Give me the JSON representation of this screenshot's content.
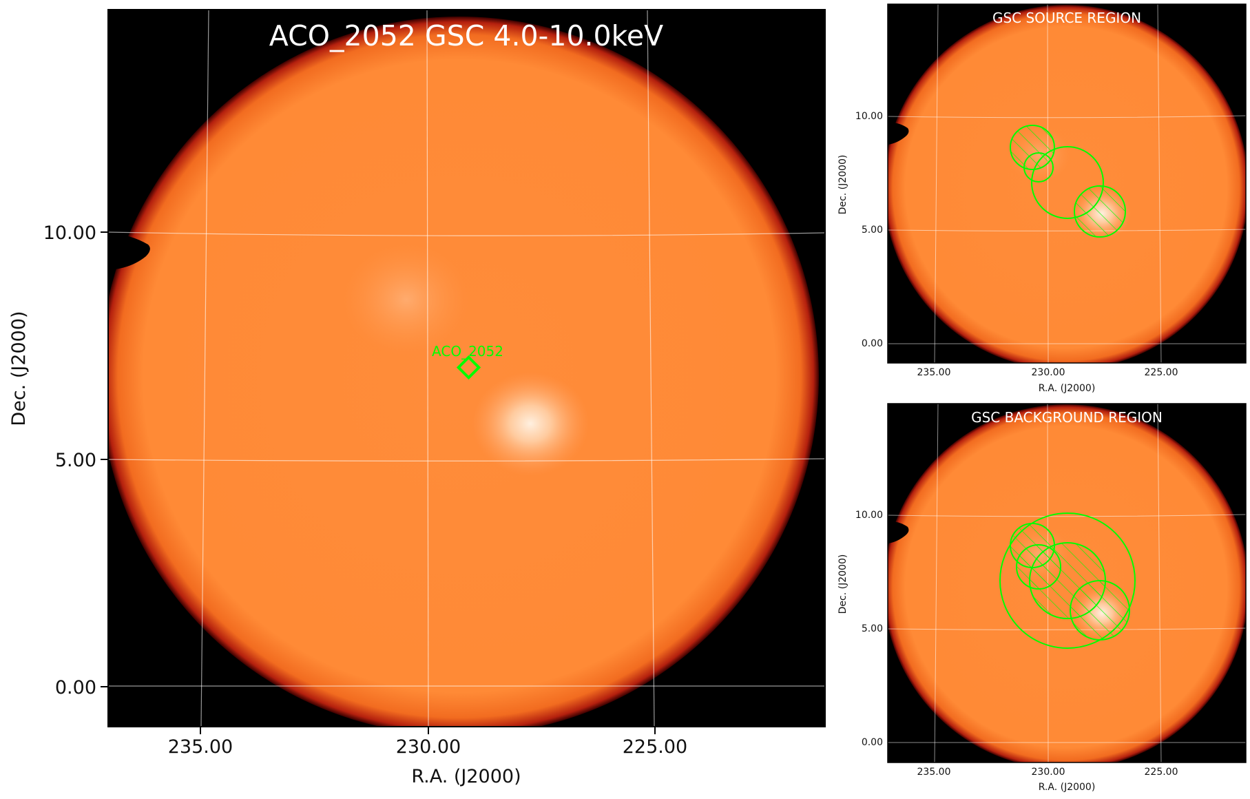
{
  "main_panel": {
    "title": "ACO_2052 GSC 4.0-10.0keV",
    "xlabel": "R.A. (J2000)",
    "ylabel": "Dec. (J2000)",
    "x_ticks": [
      "235.00",
      "230.00",
      "225.00"
    ],
    "y_ticks": [
      "10.00",
      "5.00",
      "0.00"
    ],
    "target_label": "ACO_2052",
    "target_color": "#00ff00"
  },
  "source_panel": {
    "title": "GSC SOURCE REGION",
    "xlabel": "R.A. (J2000)",
    "ylabel": "Dec. (J2000)",
    "x_ticks": [
      "235.00",
      "230.00",
      "225.00"
    ],
    "y_ticks": [
      "10.00",
      "5.00",
      "0.00"
    ]
  },
  "background_panel": {
    "title": "GSC BACKGROUND REGION",
    "xlabel": "R.A. (J2000)",
    "ylabel": "Dec. (J2000)",
    "x_ticks": [
      "235.00",
      "230.00",
      "225.00"
    ],
    "y_ticks": [
      "10.00",
      "5.00",
      "0.00"
    ]
  },
  "colors": {
    "image_orange": "#ff8c38",
    "image_bright": "#ffe0c4",
    "sky_background": "#000000",
    "region_green": "#00ff00",
    "grid": "#ffffff"
  }
}
